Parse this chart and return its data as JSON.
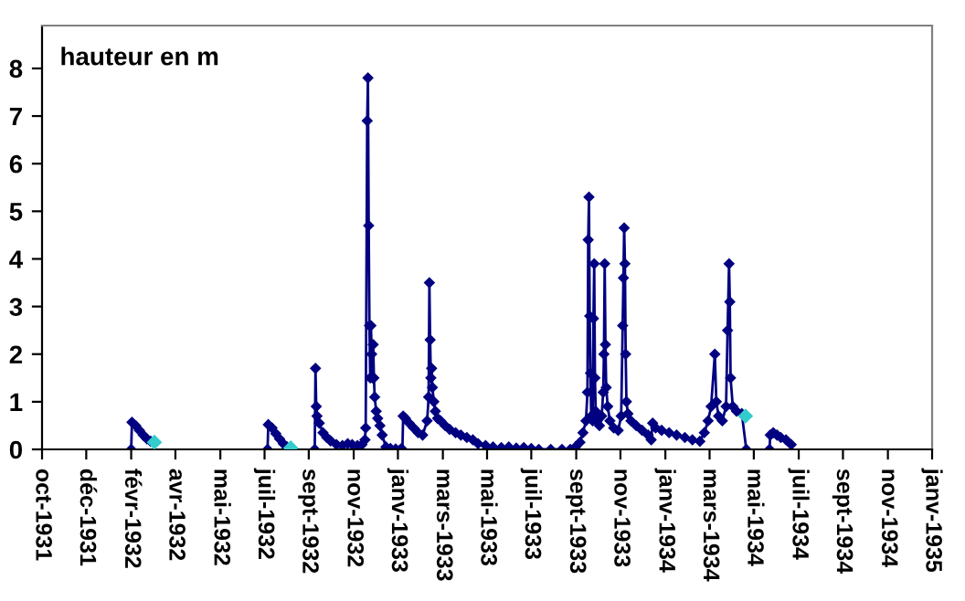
{
  "chart_data": {
    "type": "line",
    "ylabel": "hauteur en m",
    "marker": "diamond",
    "grid": false,
    "legend": false,
    "series": [
      {
        "color": "#000080",
        "x": [
          "1932-01-28",
          "1932-01-29",
          "1932-02-03",
          "1932-02-08",
          "1932-02-13",
          "1932-02-18",
          "1932-02-23",
          "1932-05-01",
          "1932-07-28",
          "1932-07-29",
          "1932-08-03",
          "1932-08-08",
          "1932-08-13",
          "1932-08-18",
          "1932-08-23",
          "1932-09-10",
          "1932-09-29",
          "1932-09-30",
          "1932-10-01",
          "1932-10-02",
          "1932-10-05",
          "1932-10-10",
          "1932-10-15",
          "1932-10-20",
          "1932-10-28",
          "1932-11-05",
          "1932-11-12",
          "1932-11-18",
          "1932-11-25",
          "1932-12-01",
          "1932-12-05",
          "1932-12-06",
          "1932-12-08",
          "1932-12-09",
          "1932-12-10",
          "1932-12-11",
          "1932-12-12",
          "1932-12-13",
          "1932-12-14",
          "1932-12-15",
          "1932-12-16",
          "1932-12-17",
          "1932-12-18",
          "1932-12-20",
          "1932-12-22",
          "1932-12-25",
          "1932-12-28",
          "1933-01-02",
          "1933-01-08",
          "1933-01-15",
          "1933-01-22",
          "1933-01-24",
          "1933-01-25",
          "1933-01-28",
          "1933-02-02",
          "1933-02-08",
          "1933-02-14",
          "1933-02-20",
          "1933-02-26",
          "1933-02-28",
          "1933-03-01",
          "1933-03-02",
          "1933-03-03",
          "1933-03-04",
          "1933-03-05",
          "1933-03-07",
          "1933-03-09",
          "1933-03-12",
          "1933-03-16",
          "1933-03-22",
          "1933-03-28",
          "1933-04-05",
          "1933-04-12",
          "1933-04-20",
          "1933-04-28",
          "1933-05-05",
          "1933-05-15",
          "1933-05-25",
          "1933-06-05",
          "1933-06-15",
          "1933-06-25",
          "1933-07-05",
          "1933-07-15",
          "1933-07-25",
          "1933-08-10",
          "1933-08-25",
          "1933-09-05",
          "1933-09-12",
          "1933-09-18",
          "1933-09-22",
          "1933-09-26",
          "1933-09-28",
          "1933-09-29",
          "1933-09-30",
          "1933-10-01",
          "1933-10-02",
          "1933-10-03",
          "1933-10-05",
          "1933-10-06",
          "1933-10-07",
          "1933-10-08",
          "1933-10-09",
          "1933-10-11",
          "1933-10-14",
          "1933-10-17",
          "1933-10-19",
          "1933-10-20",
          "1933-10-21",
          "1933-10-22",
          "1933-10-23",
          "1933-10-25",
          "1933-10-28",
          "1933-11-02",
          "1933-11-08",
          "1933-11-12",
          "1933-11-14",
          "1933-11-15",
          "1933-11-16",
          "1933-11-17",
          "1933-11-18",
          "1933-11-19",
          "1933-11-21",
          "1933-11-25",
          "1933-12-02",
          "1933-12-10",
          "1933-12-18",
          "1933-12-22",
          "1933-12-24",
          "1933-12-28",
          "1934-01-05",
          "1934-01-15",
          "1934-01-25",
          "1934-02-05",
          "1934-02-15",
          "1934-02-25",
          "1934-03-03",
          "1934-03-08",
          "1934-03-12",
          "1934-03-17",
          "1934-03-19",
          "1934-03-22",
          "1934-03-27",
          "1934-04-01",
          "1934-04-03",
          "1934-04-05",
          "1934-04-06",
          "1934-04-07",
          "1934-04-10",
          "1934-04-15",
          "1934-04-22",
          "1934-04-28",
          "1934-05-12",
          "1934-05-29",
          "1934-05-30",
          "1934-06-03",
          "1934-06-08",
          "1934-06-13",
          "1934-06-20",
          "1934-06-27"
        ],
        "values": [
          0,
          0.57,
          0.5,
          0.4,
          0.3,
          0.22,
          0.17,
          null,
          0,
          0.52,
          0.45,
          0.33,
          0.22,
          0.12,
          0.05,
          null,
          0,
          1.7,
          0.9,
          0.7,
          0.55,
          0.35,
          0.25,
          0.18,
          0.1,
          0.08,
          0.12,
          0.1,
          0.08,
          0.1,
          0.2,
          0.45,
          6.9,
          7.8,
          4.7,
          2.6,
          1.5,
          2.6,
          2.0,
          1.5,
          2.2,
          1.5,
          1.1,
          0.8,
          0.65,
          0.5,
          0.3,
          0.05,
          0.02,
          0.01,
          0.01,
          0,
          0.7,
          0.65,
          0.55,
          0.45,
          0.35,
          0.3,
          0.6,
          1.1,
          3.5,
          2.3,
          1.5,
          1.7,
          1.3,
          1.0,
          0.8,
          0.65,
          0.6,
          0.5,
          0.42,
          0.35,
          0.3,
          0.25,
          0.2,
          0.12,
          0.08,
          0.05,
          0.04,
          0.05,
          0.03,
          0.04,
          0.02,
          0,
          0,
          0,
          0,
          0.05,
          0.15,
          0.35,
          0.6,
          1.2,
          4.4,
          5.3,
          2.8,
          1.6,
          0.7,
          0.6,
          2.75,
          3.9,
          1.5,
          0.8,
          0.6,
          0.5,
          0.7,
          1.2,
          2.0,
          3.9,
          2.2,
          1.3,
          0.9,
          0.6,
          0.45,
          0.4,
          0.7,
          2.6,
          3.6,
          4.65,
          3.9,
          2.0,
          1.0,
          0.75,
          0.6,
          0.5,
          0.4,
          0.3,
          0.2,
          0.55,
          0.45,
          0.4,
          0.35,
          0.3,
          0.25,
          0.2,
          0.17,
          0.35,
          0.6,
          0.9,
          2.0,
          1.0,
          0.7,
          0.6,
          0.9,
          2.5,
          3.9,
          3.1,
          1.5,
          0.9,
          0.8,
          0.75,
          0,
          null,
          0,
          0.3,
          0.35,
          0.3,
          0.25,
          0.2,
          0.1
        ]
      },
      {
        "type": "scatter",
        "color": "#33cccc",
        "x": [
          "1932-02-28",
          "1932-08-28",
          "1934-04-27"
        ],
        "values": [
          0.15,
          0.03,
          0.7
        ]
      }
    ],
    "xlim": [
      "1931-10-01",
      "1935-01-01"
    ],
    "xticks": [
      {
        "value": "1931-10-01",
        "label": "oct-1931"
      },
      {
        "value": "1931-11-29",
        "label": "déc-1931"
      },
      {
        "value": "1932-01-28",
        "label": "févr-1932"
      },
      {
        "value": "1932-03-27",
        "label": "avr-1932"
      },
      {
        "value": "1932-05-26",
        "label": "mai-1932"
      },
      {
        "value": "1932-07-24",
        "label": "juil-1932"
      },
      {
        "value": "1932-09-21",
        "label": "sept-1932"
      },
      {
        "value": "1932-11-20",
        "label": "nov-1932"
      },
      {
        "value": "1933-01-18",
        "label": "janv-1933"
      },
      {
        "value": "1933-03-19",
        "label": "mars-1933"
      },
      {
        "value": "1933-05-17",
        "label": "mai-1933"
      },
      {
        "value": "1933-07-15",
        "label": "juil-1933"
      },
      {
        "value": "1933-09-13",
        "label": "sept-1933"
      },
      {
        "value": "1933-11-11",
        "label": "nov-1933"
      },
      {
        "value": "1934-01-10",
        "label": "janv-1934"
      },
      {
        "value": "1934-03-10",
        "label": "mars-1934"
      },
      {
        "value": "1934-05-08",
        "label": "mai-1934"
      },
      {
        "value": "1934-07-07",
        "label": "juil-1934"
      },
      {
        "value": "1934-09-04",
        "label": "sept-1934"
      },
      {
        "value": "1934-11-03",
        "label": "nov-1934"
      },
      {
        "value": "1935-01-01",
        "label": "janv-1935"
      }
    ],
    "ylim": [
      0,
      8.9
    ],
    "yticks": [
      0,
      1,
      2,
      3,
      4,
      5,
      6,
      7,
      8
    ]
  }
}
